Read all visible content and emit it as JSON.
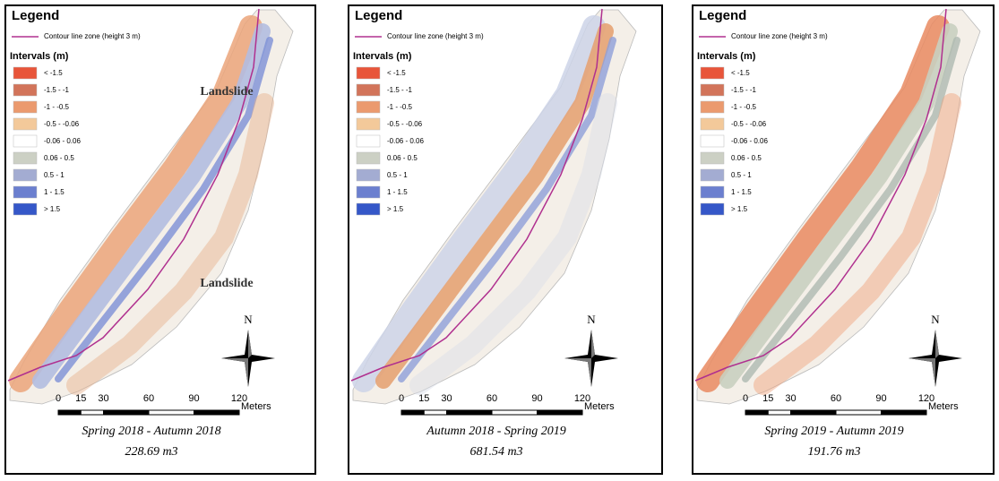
{
  "panels": [
    {
      "legend_title": "Legend",
      "contour_label": "Contour line zone (height 3 m)",
      "intervals_title": "Intervals (m)",
      "intervals": [
        {
          "label": "< -1.5",
          "color": "#e8553a"
        },
        {
          "label": "-1.5 - -1",
          "color": "#d2745a"
        },
        {
          "label": "-1 - -0.5",
          "color": "#eb9a6e"
        },
        {
          "label": "-0.5 - -0.06",
          "color": "#f3c99a"
        },
        {
          "label": "-0.06 - 0.06",
          "color": "#ffffff"
        },
        {
          "label": "0.06 - 0.5",
          "color": "#ccd0c4"
        },
        {
          "label": "0.5 - 1",
          "color": "#a3acd2"
        },
        {
          "label": "1 - 1.5",
          "color": "#6b7fcf"
        },
        {
          "label": "> 1.5",
          "color": "#3557c8"
        }
      ],
      "annotations": [
        "Landslide",
        "Landslide"
      ],
      "north": "N",
      "scale_ticks": [
        0,
        15,
        30,
        60,
        90,
        120
      ],
      "scale_unit": "Meters",
      "period": "Spring 2018 - Autumn 2018",
      "volume": "228.69 m3"
    },
    {
      "legend_title": "Legend",
      "contour_label": "Contour line zone (height 3 m)",
      "intervals_title": "Intervals (m)",
      "intervals": [
        {
          "label": "< -1.5",
          "color": "#e8553a"
        },
        {
          "label": "-1.5 - -1",
          "color": "#d2745a"
        },
        {
          "label": "-1 - -0.5",
          "color": "#eb9a6e"
        },
        {
          "label": "-0.5 - -0.06",
          "color": "#f3c99a"
        },
        {
          "label": "-0.06 - 0.06",
          "color": "#ffffff"
        },
        {
          "label": "0.06 - 0.5",
          "color": "#ccd0c4"
        },
        {
          "label": "0.5 - 1",
          "color": "#a3acd2"
        },
        {
          "label": "1 - 1.5",
          "color": "#6b7fcf"
        },
        {
          "label": "> 1.5",
          "color": "#3557c8"
        }
      ],
      "annotations": [],
      "north": "N",
      "scale_ticks": [
        0,
        15,
        30,
        60,
        90,
        120
      ],
      "scale_unit": "Meters",
      "period": "Autumn 2018 - Spring 2019",
      "volume": "681.54 m3"
    },
    {
      "legend_title": "Legend",
      "contour_label": "Contour line zone (height 3 m)",
      "intervals_title": "Intervals (m)",
      "intervals": [
        {
          "label": "< -1.5",
          "color": "#e8553a"
        },
        {
          "label": "-1.5 - -1",
          "color": "#d2745a"
        },
        {
          "label": "-1 - -0.5",
          "color": "#eb9a6e"
        },
        {
          "label": "-0.5 - -0.06",
          "color": "#f3c99a"
        },
        {
          "label": "-0.06 - 0.06",
          "color": "#ffffff"
        },
        {
          "label": "0.06 - 0.5",
          "color": "#ccd0c4"
        },
        {
          "label": "0.5 - 1",
          "color": "#a3acd2"
        },
        {
          "label": "1 - 1.5",
          "color": "#6b7fcf"
        },
        {
          "label": "> 1.5",
          "color": "#3557c8"
        }
      ],
      "annotations": [],
      "north": "N",
      "scale_ticks": [
        0,
        15,
        30,
        60,
        90,
        120
      ],
      "scale_unit": "Meters",
      "period": "Spring 2019 - Autumn 2019",
      "volume": "191.76 m3"
    }
  ]
}
